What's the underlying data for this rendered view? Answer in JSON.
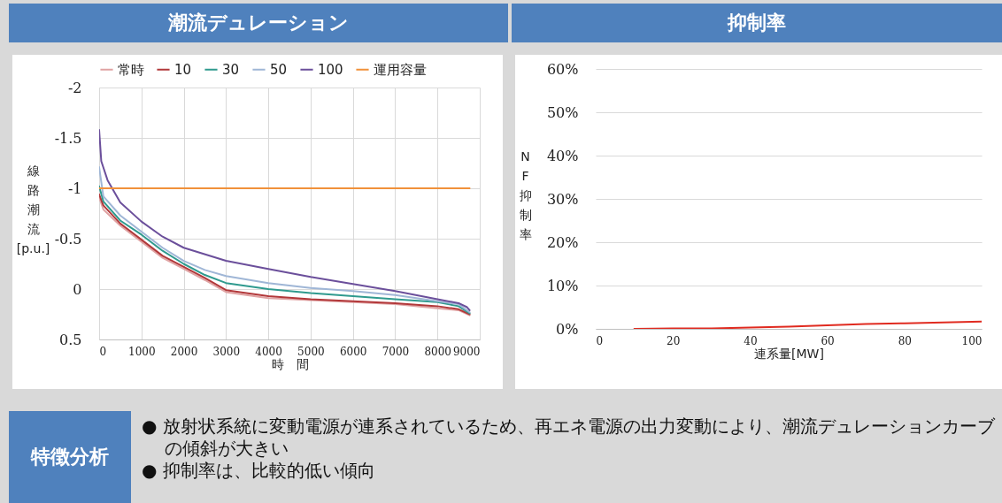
{
  "chart_data": [
    {
      "type": "line",
      "title": "潮流デュレーション",
      "xlabel": "時　間",
      "ylabel": "線路潮流[p.u.]",
      "xlim": [
        0,
        9000
      ],
      "xticks": [
        0,
        1000,
        2000,
        3000,
        4000,
        5000,
        6000,
        7000,
        8000,
        9000
      ],
      "ylim": [
        0.5,
        -2
      ],
      "yticks": [
        -2,
        -1.5,
        -1,
        -0.5,
        0,
        0.5
      ],
      "grid": true,
      "legend": "top",
      "x": [
        0,
        100,
        500,
        1000,
        1500,
        2000,
        2500,
        3000,
        4000,
        5000,
        6000,
        7000,
        8000,
        8500,
        8760
      ],
      "series": [
        {
          "name": "常時",
          "color": "#e0a3a3",
          "values": [
            -0.91,
            -0.79,
            -0.63,
            -0.47,
            -0.31,
            -0.2,
            -0.09,
            0.03,
            0.09,
            0.11,
            0.13,
            0.15,
            0.19,
            0.21,
            0.26
          ]
        },
        {
          "name": "10",
          "color": "#b2383a",
          "values": [
            -0.94,
            -0.83,
            -0.65,
            -0.49,
            -0.33,
            -0.22,
            -0.11,
            0.01,
            0.07,
            0.1,
            0.12,
            0.14,
            0.17,
            0.2,
            0.25
          ]
        },
        {
          "name": "30",
          "color": "#2f9a8e",
          "values": [
            -1.02,
            -0.87,
            -0.68,
            -0.54,
            -0.38,
            -0.25,
            -0.14,
            -0.06,
            0.0,
            0.04,
            0.07,
            0.1,
            0.13,
            0.17,
            0.24
          ]
        },
        {
          "name": "50",
          "color": "#9fb6d6",
          "values": [
            -1.21,
            -0.92,
            -0.73,
            -0.57,
            -0.41,
            -0.28,
            -0.19,
            -0.13,
            -0.06,
            -0.01,
            0.02,
            0.06,
            0.12,
            0.15,
            0.23
          ]
        },
        {
          "name": "100",
          "color": "#6b4f9b",
          "x": [
            0,
            50,
            200,
            500,
            1000,
            1500,
            2000,
            3000,
            4000,
            5000,
            6000,
            7000,
            8000,
            8500,
            8700,
            8760
          ],
          "values": [
            -1.58,
            -1.27,
            -1.08,
            -0.86,
            -0.67,
            -0.52,
            -0.41,
            -0.28,
            -0.2,
            -0.12,
            -0.05,
            0.02,
            0.1,
            0.14,
            0.18,
            0.21
          ]
        },
        {
          "name": "運用容量",
          "color": "#f0913a",
          "x": [
            0,
            8760
          ],
          "values": [
            -1,
            -1
          ]
        }
      ]
    },
    {
      "type": "line",
      "title": "抑制率",
      "xlabel": "連系量[MW]",
      "ylabel": "NF抑制率",
      "xlim": [
        0,
        100
      ],
      "xticks": [
        0,
        20,
        40,
        60,
        80,
        100
      ],
      "ylim": [
        0,
        60
      ],
      "yticks": [
        {
          "value": 0,
          "label": "0%"
        },
        {
          "value": 10,
          "label": "10%"
        },
        {
          "value": 20,
          "label": "20%"
        },
        {
          "value": 30,
          "label": "30%"
        },
        {
          "value": 40,
          "label": "40%"
        },
        {
          "value": 50,
          "label": "50%"
        },
        {
          "value": 60,
          "label": "60%"
        }
      ],
      "grid": "y",
      "x": [
        10,
        20,
        30,
        40,
        50,
        60,
        70,
        80,
        90,
        100
      ],
      "series": [
        {
          "color": "#e02b20",
          "values": [
            0,
            0.1,
            0.1,
            0.3,
            0.5,
            0.8,
            1.1,
            1.3,
            1.5,
            1.7
          ]
        }
      ]
    },
    {
      "type": "other",
      "title": "特徴分析",
      "annotations": [
        "● 放射状系統に変動電源が連系されているため、再エネ電源の出力変動により、潮流デュレーションカーブの傾斜が大きい",
        "● 抑制率は、比較的低い傾向"
      ]
    }
  ]
}
